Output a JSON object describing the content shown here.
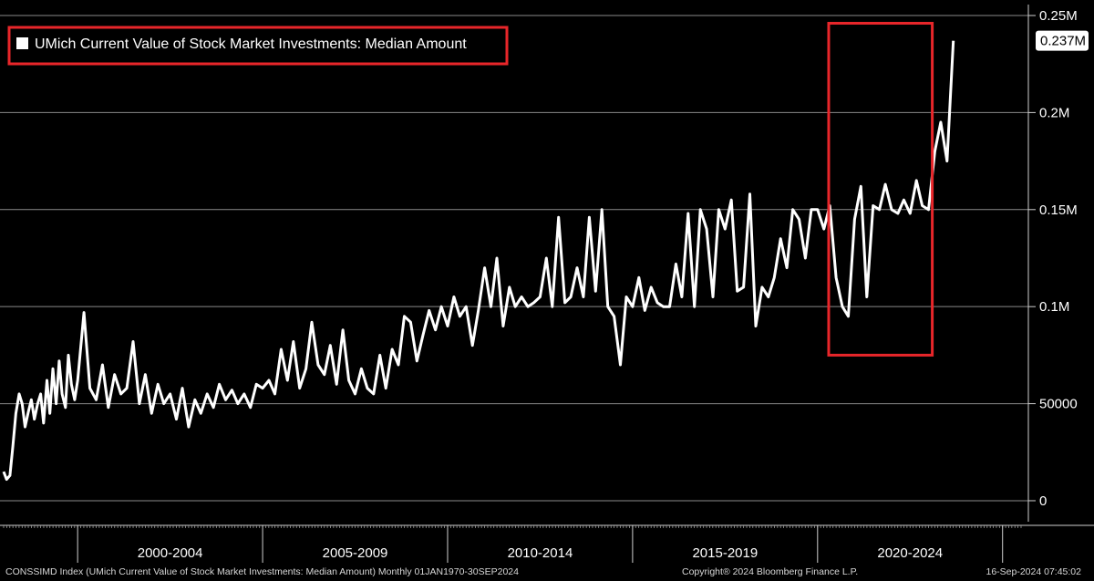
{
  "footer": {
    "source": "CONSSIMD Index (UMich Current Value of Stock Market Investments: Median Amount)  Monthly 01JAN1970-30SEP2024",
    "copyright": "Copyright® 2024 Bloomberg Finance L.P.",
    "timestamp": "16-Sep-2024 07:45:02"
  },
  "colors": {
    "background": "#000000",
    "line": "#ffffff",
    "grid": "#8a8a8a",
    "highlight_box": "#e8262a"
  },
  "chart_data": {
    "type": "line",
    "title": "",
    "xlabel": "",
    "ylabel": "",
    "legend": {
      "placement": "top-left",
      "label": "UMich Current Value of Stock Market Investments: Median Amount"
    },
    "last_value_label": "0.237M",
    "x_range": [
      1998.0,
      2025.5
    ],
    "ylim": [
      -8000,
      250000
    ],
    "grid": "horizontal",
    "y_ticks": [
      {
        "value": 0,
        "label": "0"
      },
      {
        "value": 50000,
        "label": "50000"
      },
      {
        "value": 100000,
        "label": "0.1M"
      },
      {
        "value": 150000,
        "label": "0.15M"
      },
      {
        "value": 200000,
        "label": "0.2M"
      },
      {
        "value": 250000,
        "label": "0.25M"
      }
    ],
    "x_tick_years": [
      2000,
      2005,
      2010,
      2015,
      2020,
      2025
    ],
    "x_period_labels": [
      {
        "label": "2000-2004",
        "start": 2000,
        "end": 2005
      },
      {
        "label": "2005-2009",
        "start": 2005,
        "end": 2010
      },
      {
        "label": "2010-2014",
        "start": 2010,
        "end": 2015
      },
      {
        "label": "2015-2019",
        "start": 2015,
        "end": 2020
      },
      {
        "label": "2020-2024",
        "start": 2020,
        "end": 2025
      }
    ],
    "highlight": {
      "x_start": 2020.3,
      "x_end": 2023.1,
      "y_low": 75000,
      "y_high": 246000
    },
    "series": [
      {
        "x": [
          1998.0,
          1998.08,
          1998.17,
          1998.25,
          1998.33,
          1998.42,
          1998.5,
          1998.58,
          1998.67,
          1998.75,
          1998.83,
          1998.92,
          1999.0,
          1999.08,
          1999.17,
          1999.25,
          1999.33,
          1999.42,
          1999.5,
          1999.58,
          1999.67,
          1999.75,
          1999.83,
          1999.92,
          2000.0,
          2000.17,
          2000.33,
          2000.5,
          2000.67,
          2000.83,
          2001.0,
          2001.17,
          2001.33,
          2001.5,
          2001.67,
          2001.83,
          2002.0,
          2002.17,
          2002.33,
          2002.5,
          2002.67,
          2002.83,
          2003.0,
          2003.17,
          2003.33,
          2003.5,
          2003.67,
          2003.83,
          2004.0,
          2004.17,
          2004.33,
          2004.5,
          2004.67,
          2004.83,
          2005.0,
          2005.17,
          2005.33,
          2005.5,
          2005.67,
          2005.83,
          2006.0,
          2006.17,
          2006.33,
          2006.5,
          2006.67,
          2006.83,
          2007.0,
          2007.17,
          2007.33,
          2007.5,
          2007.67,
          2007.83,
          2008.0,
          2008.17,
          2008.33,
          2008.5,
          2008.67,
          2008.83,
          2009.0,
          2009.17,
          2009.33,
          2009.5,
          2009.67,
          2009.83,
          2010.0,
          2010.17,
          2010.33,
          2010.5,
          2010.67,
          2010.83,
          2011.0,
          2011.17,
          2011.33,
          2011.5,
          2011.67,
          2011.83,
          2012.0,
          2012.17,
          2012.33,
          2012.5,
          2012.67,
          2012.83,
          2013.0,
          2013.17,
          2013.33,
          2013.5,
          2013.67,
          2013.83,
          2014.0,
          2014.17,
          2014.33,
          2014.5,
          2014.67,
          2014.83,
          2015.0,
          2015.17,
          2015.33,
          2015.5,
          2015.67,
          2015.83,
          2016.0,
          2016.17,
          2016.33,
          2016.5,
          2016.67,
          2016.83,
          2017.0,
          2017.17,
          2017.33,
          2017.5,
          2017.67,
          2017.83,
          2018.0,
          2018.17,
          2018.33,
          2018.5,
          2018.67,
          2018.83,
          2019.0,
          2019.17,
          2019.33,
          2019.5,
          2019.67,
          2019.83,
          2020.0,
          2020.17,
          2020.33,
          2020.5,
          2020.67,
          2020.83,
          2021.0,
          2021.17,
          2021.33,
          2021.5,
          2021.67,
          2021.83,
          2022.0,
          2022.17,
          2022.33,
          2022.5,
          2022.67,
          2022.83,
          2023.0,
          2023.17,
          2023.33,
          2023.5,
          2023.67
        ],
        "values": [
          15000,
          11000,
          13000,
          28000,
          45000,
          55000,
          50000,
          38000,
          46000,
          52000,
          42000,
          50000,
          55000,
          40000,
          62000,
          45000,
          68000,
          50000,
          72000,
          55000,
          48000,
          75000,
          60000,
          52000,
          62000,
          97000,
          58000,
          52000,
          70000,
          48000,
          65000,
          55000,
          58000,
          82000,
          50000,
          65000,
          45000,
          60000,
          50000,
          55000,
          42000,
          58000,
          38000,
          52000,
          45000,
          55000,
          48000,
          60000,
          52000,
          57000,
          50000,
          55000,
          48000,
          60000,
          58000,
          62000,
          55000,
          78000,
          62000,
          82000,
          58000,
          68000,
          92000,
          70000,
          65000,
          80000,
          60000,
          88000,
          62000,
          55000,
          68000,
          58000,
          55000,
          75000,
          58000,
          78000,
          70000,
          95000,
          92000,
          72000,
          85000,
          98000,
          88000,
          100000,
          90000,
          105000,
          95000,
          100000,
          80000,
          98000,
          120000,
          100000,
          125000,
          90000,
          110000,
          100000,
          105000,
          100000,
          102000,
          105000,
          125000,
          100000,
          146000,
          102000,
          105000,
          120000,
          105000,
          146000,
          108000,
          150000,
          100000,
          95000,
          70000,
          105000,
          100000,
          115000,
          98000,
          110000,
          102000,
          100000,
          100000,
          122000,
          105000,
          148000,
          100000,
          150000,
          140000,
          105000,
          150000,
          140000,
          155000,
          108000,
          110000,
          158000,
          90000,
          110000,
          105000,
          115000,
          135000,
          120000,
          150000,
          145000,
          125000,
          150000,
          150000,
          140000,
          152000,
          115000,
          100000,
          95000,
          145000,
          162000,
          105000,
          152000,
          150000,
          163000,
          150000,
          148000,
          155000,
          148000,
          165000,
          152000,
          150000,
          180000,
          195000,
          175000,
          237000
        ]
      }
    ]
  }
}
